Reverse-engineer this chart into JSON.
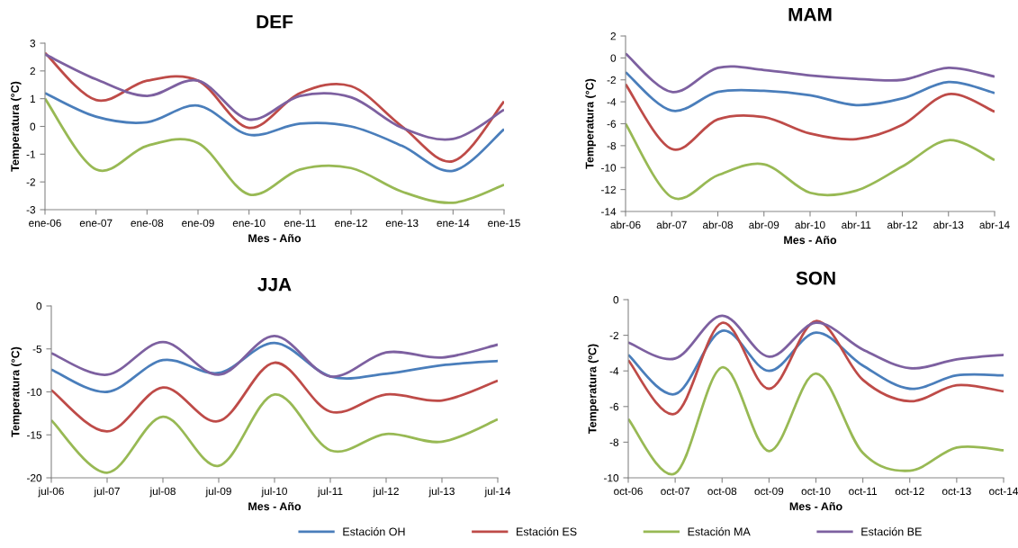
{
  "chart_data": [
    {
      "type": "line",
      "title": "DEF",
      "xlabel": "Mes - Año",
      "ylabel": "Temperatura (°C)",
      "categories": [
        "ene-06",
        "ene-07",
        "ene-08",
        "ene-09",
        "ene-10",
        "ene-11",
        "ene-12",
        "ene-13",
        "ene-14",
        "ene-15"
      ],
      "ylim": [
        -3,
        3
      ],
      "yticks": [
        -3,
        -2,
        -1,
        0,
        1,
        2,
        3
      ],
      "grid": false,
      "legend": "bottom",
      "marker": "none",
      "line_style": "solid",
      "series": [
        {
          "name": "Estación OH",
          "color": "#4a7ebb",
          "values": [
            1.2,
            0.35,
            0.15,
            0.75,
            -0.3,
            0.1,
            0.0,
            -0.7,
            -1.6,
            -0.1
          ]
        },
        {
          "name": "Estación ES",
          "color": "#be4b48",
          "values": [
            2.65,
            0.95,
            1.65,
            1.65,
            -0.05,
            1.2,
            1.45,
            0.0,
            -1.25,
            0.9
          ]
        },
        {
          "name": "Estación MA",
          "color": "#98b954",
          "values": [
            1.0,
            -1.55,
            -0.7,
            -0.6,
            -2.45,
            -1.55,
            -1.5,
            -2.35,
            -2.75,
            -2.1
          ]
        },
        {
          "name": "Estación BE",
          "color": "#7d60a0",
          "values": [
            2.6,
            1.7,
            1.1,
            1.65,
            0.25,
            1.1,
            1.05,
            -0.05,
            -0.45,
            0.6
          ]
        }
      ]
    },
    {
      "type": "line",
      "title": "MAM",
      "xlabel": "Mes - Año",
      "ylabel": "Temperatura (°C)",
      "categories": [
        "abr-06",
        "abr-07",
        "abr-08",
        "abr-09",
        "abr-10",
        "abr-11",
        "abr-12",
        "abr-13",
        "abr-14"
      ],
      "ylim": [
        -14,
        2
      ],
      "yticks": [
        -14,
        -12,
        -10,
        -8,
        -6,
        -4,
        -2,
        0,
        2
      ],
      "grid": false,
      "marker": "none",
      "line_style": "solid",
      "series": [
        {
          "color": "#4a7ebb",
          "values": [
            -1.3,
            -4.8,
            -3.1,
            -3.0,
            -3.4,
            -4.3,
            -3.7,
            -2.2,
            -3.2
          ]
        },
        {
          "color": "#be4b48",
          "values": [
            -2.4,
            -8.3,
            -5.6,
            -5.4,
            -6.9,
            -7.4,
            -6.1,
            -3.3,
            -4.9
          ]
        },
        {
          "color": "#98b954",
          "values": [
            -6.0,
            -12.7,
            -10.7,
            -9.7,
            -12.3,
            -12.1,
            -9.9,
            -7.5,
            -9.3
          ]
        },
        {
          "color": "#7d60a0",
          "values": [
            0.4,
            -3.1,
            -0.9,
            -1.1,
            -1.6,
            -1.9,
            -2.0,
            -0.9,
            -1.7
          ]
        }
      ]
    },
    {
      "type": "line",
      "title": "JJA",
      "xlabel": "Mes - Año",
      "ylabel": "Temperatura (°C)",
      "categories": [
        "jul-06",
        "jul-07",
        "jul-08",
        "jul-09",
        "jul-10",
        "jul-11",
        "jul-12",
        "jul-13",
        "jul-14"
      ],
      "ylim": [
        -20,
        0
      ],
      "yticks": [
        -20,
        -15,
        -10,
        -5,
        0
      ],
      "grid": false,
      "marker": "none",
      "line_style": "solid",
      "series": [
        {
          "color": "#4a7ebb",
          "values": [
            -7.4,
            -10.0,
            -6.3,
            -7.8,
            -4.3,
            -8.2,
            -7.9,
            -6.9,
            -6.4
          ]
        },
        {
          "color": "#be4b48",
          "values": [
            -9.8,
            -14.6,
            -9.5,
            -13.4,
            -6.6,
            -12.3,
            -10.3,
            -11.0,
            -8.7
          ]
        },
        {
          "color": "#98b954",
          "values": [
            -13.3,
            -19.4,
            -12.9,
            -18.6,
            -10.3,
            -16.8,
            -14.9,
            -15.8,
            -13.2
          ]
        },
        {
          "color": "#7d60a0",
          "values": [
            -5.5,
            -8.0,
            -4.2,
            -8.0,
            -3.5,
            -8.2,
            -5.4,
            -6.0,
            -4.5
          ]
        }
      ]
    },
    {
      "type": "line",
      "title": "SON",
      "xlabel": "Mes - Año",
      "ylabel": "Temperatura (ºC)",
      "categories": [
        "oct-06",
        "oct-07",
        "oct-08",
        "oct-09",
        "oct-10",
        "oct-11",
        "oct-12",
        "oct-13",
        "oct-14"
      ],
      "ylim": [
        -10,
        0
      ],
      "yticks": [
        -10,
        -8,
        -6,
        -4,
        -2,
        0
      ],
      "grid": false,
      "marker": "none",
      "line_style": "solid",
      "series": [
        {
          "color": "#4a7ebb",
          "values": [
            -3.1,
            -5.3,
            -1.75,
            -4.0,
            -1.85,
            -3.7,
            -5.0,
            -4.25,
            -4.25
          ]
        },
        {
          "color": "#be4b48",
          "values": [
            -3.4,
            -6.4,
            -1.3,
            -5.0,
            -1.2,
            -4.5,
            -5.7,
            -4.8,
            -5.15
          ]
        },
        {
          "color": "#98b954",
          "values": [
            -6.7,
            -9.75,
            -3.8,
            -8.5,
            -4.15,
            -8.6,
            -9.6,
            -8.3,
            -8.45
          ]
        },
        {
          "color": "#7d60a0",
          "values": [
            -2.4,
            -3.3,
            -0.9,
            -3.2,
            -1.3,
            -2.8,
            -3.85,
            -3.35,
            -3.1
          ]
        }
      ]
    }
  ]
}
